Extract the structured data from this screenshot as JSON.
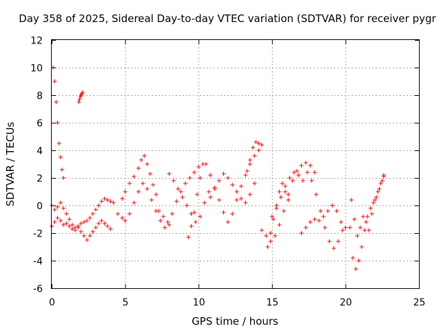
{
  "chart_data": {
    "type": "scatter",
    "title": "Day 358 of 2025, Sidereal Day-to-day VTEC variation (SDTVAR) for receiver pygr",
    "xlabel": "GPS time / hours",
    "ylabel": "SDTVAR / TECUs",
    "xlim": [
      0,
      25
    ],
    "ylim": [
      -6,
      12
    ],
    "xticks": [
      "0",
      "5",
      "10",
      "15",
      "20",
      "25"
    ],
    "yticks": [
      "-6",
      "-4",
      "-2",
      "0",
      "2",
      "4",
      "6",
      "8",
      "10",
      "12"
    ],
    "grid": true,
    "marker": "+",
    "series_color": "#ff0000",
    "series": [
      {
        "name": "pygr",
        "segments": [
          {
            "x": [
              0.0,
              0.2,
              0.4,
              0.6,
              0.8,
              1.0,
              1.2,
              1.4,
              1.6,
              1.8,
              2.0,
              2.2,
              2.4,
              2.6,
              2.8,
              3.0,
              3.2,
              3.4,
              3.6,
              3.8,
              4.0
            ],
            "y": [
              -1.5,
              -1.2,
              -0.9,
              -1.1,
              -1.4,
              -1.3,
              -1.5,
              -1.7,
              -1.8,
              -1.6,
              -1.9,
              -2.2,
              -2.5,
              -2.2,
              -1.9,
              -1.6,
              -1.3,
              -1.1,
              -1.3,
              -1.5,
              -1.7
            ]
          },
          {
            "x": [
              0.0,
              0.2,
              0.4,
              0.6,
              0.8,
              1.0,
              1.2,
              1.4,
              1.6,
              1.8,
              2.0,
              2.2,
              2.4,
              2.6,
              2.8,
              3.0,
              3.2,
              3.4,
              3.6,
              3.8,
              4.0,
              4.2
            ],
            "y": [
              0.0,
              -0.3,
              -0.1,
              0.2,
              -0.2,
              -0.6,
              -1.0,
              -1.4,
              -1.6,
              -1.5,
              -1.3,
              -1.2,
              -1.1,
              -0.9,
              -0.6,
              -0.3,
              0.0,
              0.3,
              0.5,
              0.4,
              0.3,
              0.2
            ]
          },
          {
            "x": [
              0.1,
              0.2,
              0.3,
              0.4,
              0.5,
              0.6,
              0.7,
              0.8
            ],
            "y": [
              10.0,
              9.0,
              7.5,
              6.0,
              4.5,
              3.5,
              2.6,
              2.0
            ]
          },
          {
            "x": [
              1.85,
              1.9,
              1.95,
              2.0,
              2.05,
              2.1
            ],
            "y": [
              7.5,
              7.7,
              7.9,
              8.0,
              8.1,
              8.2
            ]
          },
          {
            "x": [
              4.5,
              4.8,
              5.0,
              5.3,
              5.6,
              5.9,
              6.2,
              6.5,
              6.8,
              7.1,
              7.4,
              7.7,
              8.0
            ],
            "y": [
              -0.6,
              -0.9,
              -1.1,
              -0.6,
              0.2,
              1.0,
              1.6,
              1.2,
              0.4,
              -0.4,
              -1.1,
              -1.6,
              -1.4
            ]
          },
          {
            "x": [
              4.8,
              5.0,
              5.3,
              5.6,
              5.9,
              6.1,
              6.3,
              6.5,
              6.7,
              6.9,
              7.1
            ],
            "y": [
              0.5,
              1.0,
              1.6,
              2.1,
              2.7,
              3.3,
              3.6,
              3.0,
              2.3,
              1.5,
              0.8
            ]
          },
          {
            "x": [
              7.3,
              7.6,
              7.9,
              8.2,
              8.5,
              8.8,
              9.1,
              9.4,
              9.7,
              10.0
            ],
            "y": [
              -0.4,
              -0.8,
              -1.2,
              -0.6,
              0.3,
              1.0,
              1.6,
              2.0,
              2.4,
              2.8
            ]
          },
          {
            "x": [
              8.0,
              8.3,
              8.6,
              8.9,
              9.2,
              9.5,
              9.8,
              10.1,
              10.4,
              10.7
            ],
            "y": [
              2.3,
              1.8,
              1.2,
              0.6,
              0.0,
              -0.6,
              -1.2,
              -0.8,
              0.2,
              1.0
            ]
          },
          {
            "x": [
              9.3,
              9.5,
              9.7,
              9.9,
              10.1,
              10.3
            ],
            "y": [
              -2.3,
              -1.5,
              -0.5,
              0.8,
              2.0,
              3.0
            ]
          },
          {
            "x": [
              10.5,
              10.8,
              11.1,
              11.4,
              11.7,
              12.0,
              12.3,
              12.6,
              12.9,
              13.2,
              13.5,
              13.8,
              14.1
            ],
            "y": [
              3.0,
              2.2,
              1.3,
              0.4,
              -0.5,
              -1.2,
              -0.6,
              0.4,
              1.4,
              2.2,
              3.0,
              3.6,
              4.0
            ]
          },
          {
            "x": [
              10.8,
              11.1,
              11.4,
              11.7,
              12.0,
              12.3,
              12.6,
              12.9,
              13.2,
              13.5,
              13.8
            ],
            "y": [
              0.6,
              1.2,
              1.8,
              2.3,
              2.0,
              1.5,
              1.0,
              0.5,
              0.2,
              0.8,
              1.6
            ]
          },
          {
            "x": [
              13.3,
              13.5,
              13.7,
              13.9,
              14.1,
              14.3
            ],
            "y": [
              2.5,
              3.3,
              4.2,
              4.6,
              4.5,
              4.4
            ]
          },
          {
            "x": [
              14.3,
              14.6,
              14.9,
              15.2,
              15.5,
              15.8,
              16.1,
              16.4,
              16.7,
              17.0,
              17.3,
              17.6,
              17.9
            ],
            "y": [
              -1.8,
              -2.2,
              -2.6,
              -2.2,
              -1.4,
              -0.4,
              0.8,
              1.8,
              2.5,
              2.9,
              3.1,
              2.9,
              2.4
            ]
          },
          {
            "x": [
              15.0,
              15.3,
              15.6,
              15.9,
              16.2,
              16.5,
              16.8,
              17.1,
              17.4,
              17.7,
              18.0,
              18.3,
              18.6,
              18.9,
              19.2,
              19.5,
              19.8
            ],
            "y": [
              -0.8,
              -0.2,
              0.6,
              1.4,
              2.0,
              2.4,
              2.2,
              1.8,
              2.4,
              1.8,
              0.8,
              -0.4,
              -1.6,
              -2.6,
              -3.1,
              -2.6,
              -1.8
            ]
          },
          {
            "x": [
              14.7,
              14.9,
              15.1,
              15.3,
              15.5,
              15.7,
              15.9,
              16.1
            ],
            "y": [
              -3.0,
              -2.0,
              -1.0,
              0.0,
              1.0,
              1.6,
              1.0,
              0.4
            ]
          },
          {
            "x": [
              17.0,
              17.3,
              17.6,
              17.9,
              18.2,
              18.5,
              18.8,
              19.1,
              19.4,
              19.7,
              20.0
            ],
            "y": [
              -2.0,
              -1.6,
              -1.2,
              -1.0,
              -1.1,
              -0.8,
              -0.4,
              0.0,
              -0.4,
              -1.2,
              -1.6
            ]
          },
          {
            "x": [
              20.3,
              20.5,
              20.7,
              20.9,
              21.1,
              21.3,
              21.5,
              21.7,
              21.9,
              22.1,
              22.3,
              22.5,
              22.6
            ],
            "y": [
              -1.6,
              -3.8,
              -4.6,
              -4.0,
              -3.0,
              -1.8,
              -0.8,
              -0.2,
              0.2,
              0.6,
              1.2,
              1.8,
              2.1
            ]
          },
          {
            "x": [
              20.4,
              20.6,
              20.8,
              21.0,
              21.2,
              21.4,
              21.6,
              21.8,
              22.0,
              22.2,
              22.4,
              22.6
            ],
            "y": [
              0.4,
              -1.0,
              -2.2,
              -1.6,
              -0.8,
              -1.2,
              -1.8,
              -0.6,
              0.4,
              1.0,
              1.6,
              2.2
            ]
          }
        ]
      }
    ]
  }
}
